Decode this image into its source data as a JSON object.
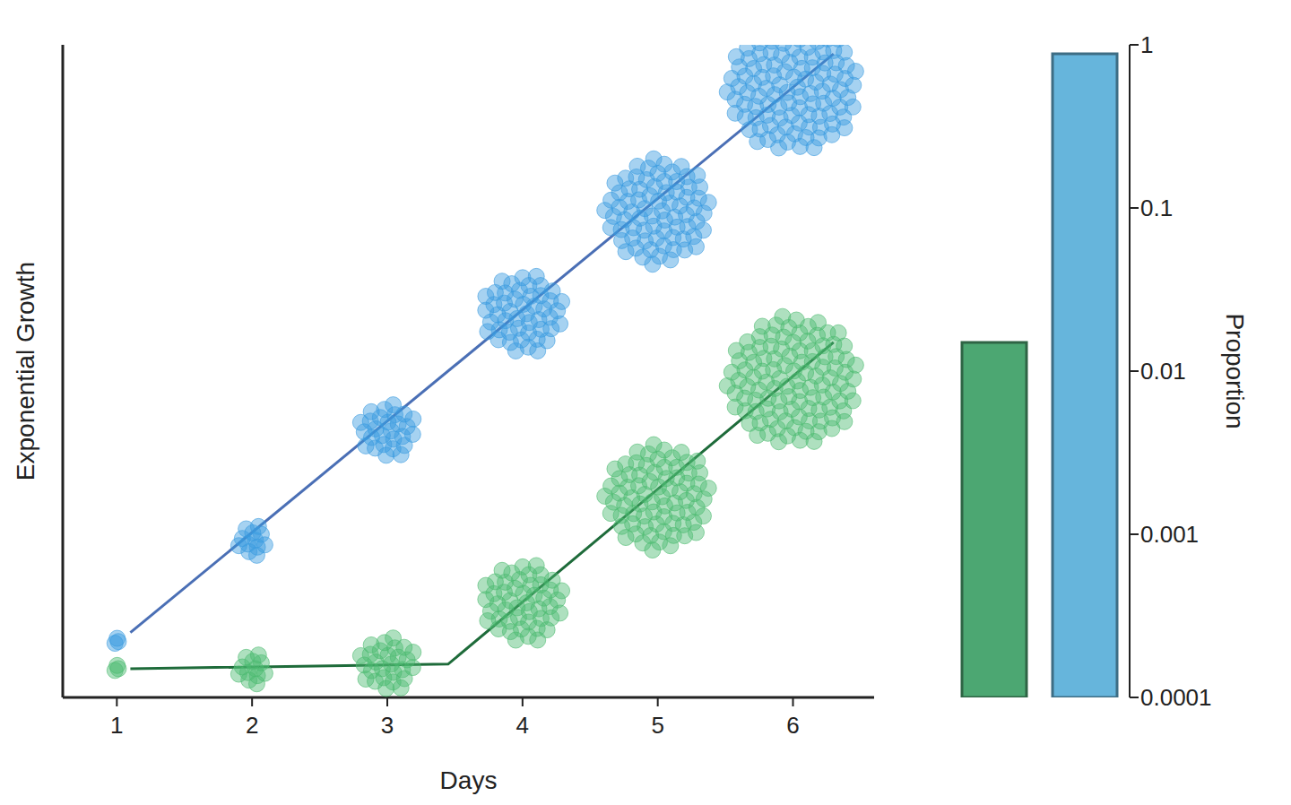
{
  "chart_data": [
    {
      "type": "line",
      "x_label": "Days",
      "y_label": "Exponential Growth",
      "xlim": [
        0.6,
        6.6
      ],
      "xticks": [
        1,
        2,
        3,
        4,
        5,
        6
      ],
      "ylim": [
        0.0001,
        1
      ],
      "log": "y",
      "tick_labels": "x",
      "series": [
        {
          "type": "line",
          "color": "#4a6fb5",
          "x": [
            1.1,
            6.3
          ],
          "values": [
            0.00025,
            0.88
          ]
        },
        {
          "type": "line",
          "color": "#1e6b3a",
          "x": [
            1.1,
            3.45,
            6.3
          ],
          "values": [
            0.00015,
            0.00016,
            0.015
          ]
        },
        {
          "type": "scatter",
          "marker": "circle",
          "color": "#3a9be0",
          "x": [
            1,
            2,
            3,
            4,
            5,
            6
          ],
          "values": [
            0.00022,
            0.00092,
            0.0043,
            0.0225,
            0.096,
            0.55
          ]
        },
        {
          "type": "scatter",
          "marker": "circle",
          "color": "#4cbb70",
          "x": [
            1,
            2,
            3,
            4,
            5,
            6
          ],
          "values": [
            0.00015,
            0.00015,
            0.00016,
            0.00038,
            0.0017,
            0.0087
          ]
        }
      ]
    },
    {
      "type": "bar",
      "y_label": "Proportion",
      "categories": [
        null,
        null
      ],
      "values": [
        0.015,
        0.88
      ],
      "colors": [
        "#4ca772",
        "#66b5dc"
      ],
      "log": "y",
      "ylim": [
        0.0001,
        1
      ],
      "yticks": [
        0.0001,
        0.001,
        0.01,
        0.1,
        1
      ]
    }
  ]
}
